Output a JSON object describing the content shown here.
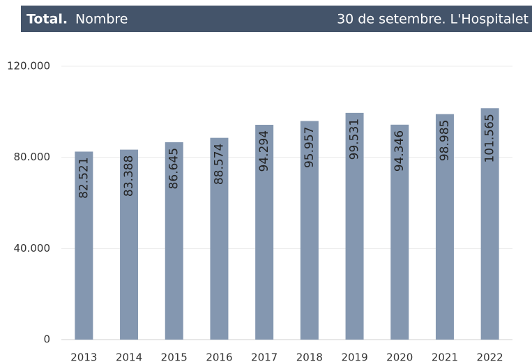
{
  "chart_data": {
    "type": "bar",
    "title_prefix": "Total.",
    "title": "Nombre",
    "subtitle": "30 de setembre. L'Hospitalet",
    "categories": [
      "2013",
      "2014",
      "2015",
      "2016",
      "2017",
      "2018",
      "2019",
      "2020",
      "2021",
      "2022"
    ],
    "values": [
      82521,
      83388,
      86645,
      88574,
      94294,
      95957,
      99531,
      94346,
      98985,
      101565
    ],
    "value_labels": [
      "82.521",
      "83.388",
      "86.645",
      "88.574",
      "94.294",
      "95.957",
      "99.531",
      "94.346",
      "98.985",
      "101.565"
    ],
    "color": "#8497b0",
    "ylim": [
      0,
      120000
    ],
    "yticks": [
      0,
      {
        "value": 40000,
        "label": "40.000"
      },
      {
        "value": 80000,
        "label": "80.000"
      },
      {
        "value": 120000,
        "label": "120.000"
      }
    ],
    "grid": true
  }
}
